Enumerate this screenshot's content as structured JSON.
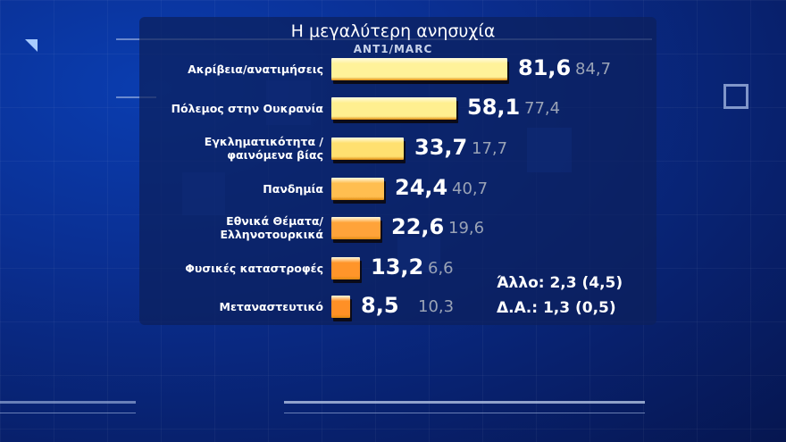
{
  "header": {
    "title": "Η μεγαλύτερη ανησυχία",
    "source": "ANT1/MARC"
  },
  "chart_data": {
    "type": "bar",
    "orientation": "horizontal",
    "title": "Η μεγαλύτερη ανησυχία",
    "subtitle": "ANT1/MARC",
    "categories": [
      "Ακρίβεια/ανατιμήσεις",
      "Πόλεμος στην Ουκρανία",
      "Εγκληματικότητα / φαινόμενα βίας",
      "Πανδημία",
      "Εθνικά Θέματα/ Ελληνοτουρκικά",
      "Φυσικές καταστροφές",
      "Μεταναστευτικό"
    ],
    "series": [
      {
        "name": "current",
        "values": [
          81.6,
          58.1,
          33.7,
          24.4,
          22.6,
          13.2,
          8.5
        ]
      },
      {
        "name": "previous",
        "values": [
          84.7,
          77.4,
          17.7,
          40.7,
          19.6,
          6.6,
          10.3
        ]
      }
    ],
    "annotations": [
      "Άλλο: 2,3 (4,5)",
      "Δ.Α.: 1,3 (0,5)"
    ],
    "grid": false,
    "legend": "none"
  },
  "rows": [
    {
      "label1": "Ακρίβεια/ανατιμήσεις",
      "label2": "",
      "value": "81,6",
      "prev": "84,7",
      "pct": 81.6,
      "color": "#fff29a"
    },
    {
      "label1": "Πόλεμος στην Ουκρανία",
      "label2": "",
      "value": "58,1",
      "prev": "77,4",
      "pct": 58.1,
      "color": "#ffef90"
    },
    {
      "label1": "Εγκληματικότητα /",
      "label2": "φαινόμενα βίας",
      "value": "33,7",
      "prev": "17,7",
      "pct": 33.7,
      "color": "#ffe070"
    },
    {
      "label1": "Πανδημία",
      "label2": "",
      "value": "24,4",
      "prev": "40,7",
      "pct": 24.4,
      "color": "#ffbe50"
    },
    {
      "label1": "Εθνικά Θέματα/",
      "label2": "Ελληνοτουρκικά",
      "value": "22,6",
      "prev": "19,6",
      "pct": 22.6,
      "color": "#ffa33a"
    },
    {
      "label1": "Φυσικές καταστροφές",
      "label2": "",
      "value": "13,2",
      "prev": "6,6",
      "pct": 13.2,
      "color": "#ff952a"
    },
    {
      "label1": "Μεταναστευτικό",
      "label2": "",
      "value": "8,5",
      "prev": "10,3",
      "pct": 8.5,
      "color": "#ff9026"
    }
  ],
  "other": {
    "line1": "Άλλο: 2,3 (4,5)",
    "line2": "Δ.Α.: 1,3 (0,5)"
  }
}
